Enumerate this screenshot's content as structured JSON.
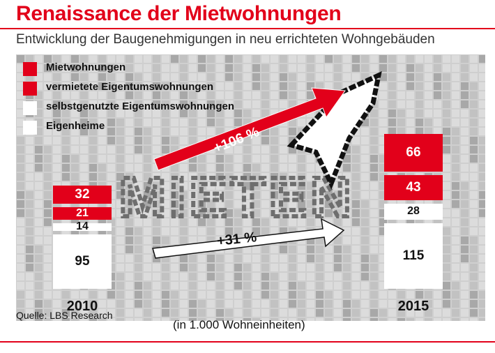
{
  "header": {
    "title": "Renaissance der Mietwohnungen",
    "subtitle": "Entwicklung der Baugenehmigungen in neu errichteten Wohngebäuden"
  },
  "colors": {
    "accent": "#e2001a",
    "white": "#ffffff",
    "background": "#cfcfcf"
  },
  "legend": [
    {
      "label": "Mietwohnungen",
      "color": "#e2001a"
    },
    {
      "label": "vermietete Eigentumswohnungen",
      "color": "#e2001a"
    },
    {
      "label": "selbstgenutzte Eigentumswohnungen",
      "color": "#ffffff"
    },
    {
      "label": "Eigenheime",
      "color": "#ffffff"
    }
  ],
  "background_text": "MIETEN",
  "annotations": {
    "growth_rent": "+106 %",
    "growth_owner": "+31 %"
  },
  "unit_note": "(in 1.000 Wohneinheiten)",
  "source": "Quelle: LBS Research",
  "chart_data": {
    "type": "bar",
    "stacked": true,
    "title": "Renaissance der Mietwohnungen",
    "subtitle": "Entwicklung der Baugenehmigungen in neu errichteten Wohngebäuden",
    "categories": [
      "2010",
      "2015"
    ],
    "series": [
      {
        "name": "Eigenheime",
        "values": [
          95,
          115
        ],
        "color": "#ffffff"
      },
      {
        "name": "selbstgenutzte Eigentumswohnungen",
        "values": [
          14,
          28
        ],
        "color": "#ffffff"
      },
      {
        "name": "vermietete Eigentumswohnungen",
        "values": [
          21,
          43
        ],
        "color": "#e2001a"
      },
      {
        "name": "Mietwohnungen",
        "values": [
          32,
          66
        ],
        "color": "#e2001a"
      }
    ],
    "annotations": [
      {
        "text": "+106 %",
        "from": "2010",
        "to": "2015",
        "series": [
          "Mietwohnungen",
          "vermietete Eigentumswohnungen"
        ]
      },
      {
        "text": "+31 %",
        "from": "2010",
        "to": "2015",
        "series": [
          "Eigenheime",
          "selbstgenutzte Eigentumswohnungen"
        ]
      }
    ],
    "ylabel": "",
    "unit": "(in 1.000 Wohneinheiten)",
    "legend_position": "top-left",
    "grid": false
  }
}
